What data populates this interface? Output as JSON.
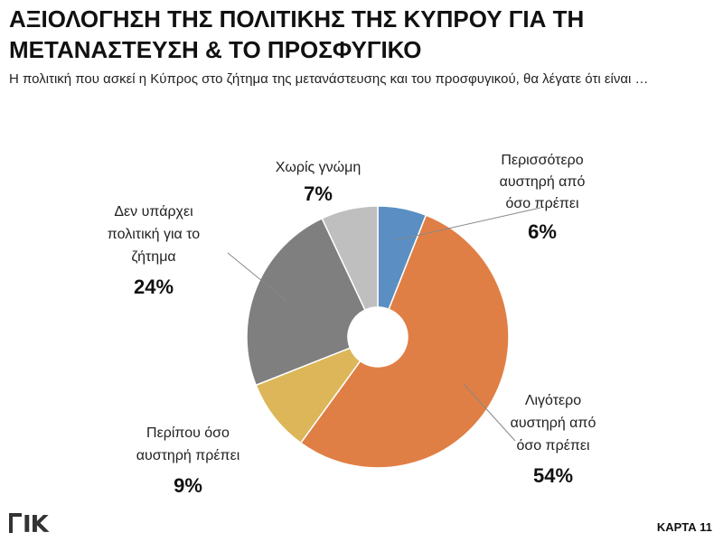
{
  "header": {
    "title": "ΑΞΙΟΛΟΓΗΣΗ ΤΗΣ ΠΟΛΙΤΙΚΗΣ ΤΗΣ ΚΥΠΡΟΥ ΓΙΑ ΤΗ ΜΕΤΑΝΑΣΤΕΥΣΗ & ΤΟ ΠΡΟΣΦΥΓΙΚΟ",
    "subtitle": "Η πολιτική που ασκεί η Κύπρος στο ζήτημα της μετανάστευσης και του προσφυγικού, θα λέγατε ότι είναι …"
  },
  "footer": {
    "logo": "ΙΚ",
    "card_label": "ΚΑΡΤΑ 11"
  },
  "chart_data": {
    "type": "pie",
    "donut": true,
    "unit": "%",
    "slices": [
      {
        "label": "Περισσότερο αυστηρή από όσο πρέπει",
        "lines": [
          "Περισσότερο",
          "αυστηρή από",
          "όσο πρέπει"
        ],
        "value": 6,
        "display": "6%",
        "color": "#5b8ec2"
      },
      {
        "label": "Λιγότερο αυστηρή από όσο πρέπει",
        "lines": [
          "Λιγότερο",
          "αυστηρή από",
          "όσο πρέπει"
        ],
        "value": 54,
        "display": "54%",
        "color": "#e07f45"
      },
      {
        "label": "Περίπου όσο αυστηρή πρέπει",
        "lines": [
          "Περίπου όσο",
          "αυστηρή πρέπει"
        ],
        "value": 9,
        "display": "9%",
        "color": "#dcb659"
      },
      {
        "label": "Δεν υπάρχει πολιτική για το ζήτημα",
        "lines": [
          "Δεν υπάρχει",
          "πολιτική για το",
          "ζήτημα"
        ],
        "value": 24,
        "display": "24%",
        "color": "#7f7f7f"
      },
      {
        "label": "Χωρίς γνώμη",
        "lines": [
          "Χωρίς γνώμη"
        ],
        "value": 7,
        "display": "7%",
        "color": "#bfbfbf"
      }
    ]
  }
}
